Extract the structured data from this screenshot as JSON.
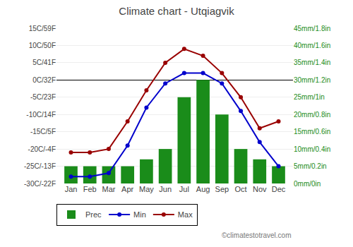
{
  "chart_data": {
    "type": "bar",
    "title": "Climate chart - Utqiagvik",
    "categories": [
      "Jan",
      "Feb",
      "Mar",
      "Apr",
      "May",
      "Jun",
      "Jul",
      "Aug",
      "Sep",
      "Oct",
      "Nov",
      "Dec"
    ],
    "series": [
      {
        "name": "Prec",
        "type": "bar",
        "axis": "y2",
        "color": "#1a8c1a",
        "values": [
          5,
          5,
          5,
          5,
          7,
          10,
          25,
          30,
          20,
          10,
          7,
          5
        ]
      },
      {
        "name": "Min",
        "type": "line",
        "color": "#0000cc",
        "marker": "circle",
        "values": [
          -28,
          -28,
          -27,
          -19,
          -8,
          -1,
          2,
          2,
          -1,
          -9,
          -18,
          -25
        ]
      },
      {
        "name": "Max",
        "type": "line",
        "color": "#990000",
        "marker": "circle",
        "values": [
          -21,
          -21,
          -20,
          -12,
          -3,
          5,
          9,
          7,
          2,
          -5,
          -14,
          -12
        ]
      }
    ],
    "ylim": [
      -30,
      15
    ],
    "yticks": [
      {
        "value": -30,
        "label": "-30C/-22F"
      },
      {
        "value": -25,
        "label": "-25C/-13F"
      },
      {
        "value": -20,
        "label": "-20C/-4F"
      },
      {
        "value": -15,
        "label": "-15C/5F"
      },
      {
        "value": -10,
        "label": "-10C/14F"
      },
      {
        "value": -5,
        "label": "-5C/23F"
      },
      {
        "value": 0,
        "label": "0C/32F"
      },
      {
        "value": 5,
        "label": "5C/41F"
      },
      {
        "value": 10,
        "label": "10C/50F"
      },
      {
        "value": 15,
        "label": "15C/59F"
      }
    ],
    "y2lim": [
      0,
      45
    ],
    "y2ticks": [
      {
        "value": 0,
        "label": "0mm/0in"
      },
      {
        "value": 5,
        "label": "5mm/0.2in"
      },
      {
        "value": 10,
        "label": "10mm/0.4in"
      },
      {
        "value": 15,
        "label": "15mm/0.6in"
      },
      {
        "value": 20,
        "label": "20mm/0.8in"
      },
      {
        "value": 25,
        "label": "25mm/1in"
      },
      {
        "value": 30,
        "label": "30mm/1.2in"
      },
      {
        "value": 35,
        "label": "35mm/1.4in"
      },
      {
        "value": 40,
        "label": "40mm/1.6in"
      },
      {
        "value": 45,
        "label": "45mm/1.8in"
      }
    ],
    "grid": true,
    "legend": "bottom left",
    "annotations": [
      "©climatestotravel.com"
    ]
  }
}
